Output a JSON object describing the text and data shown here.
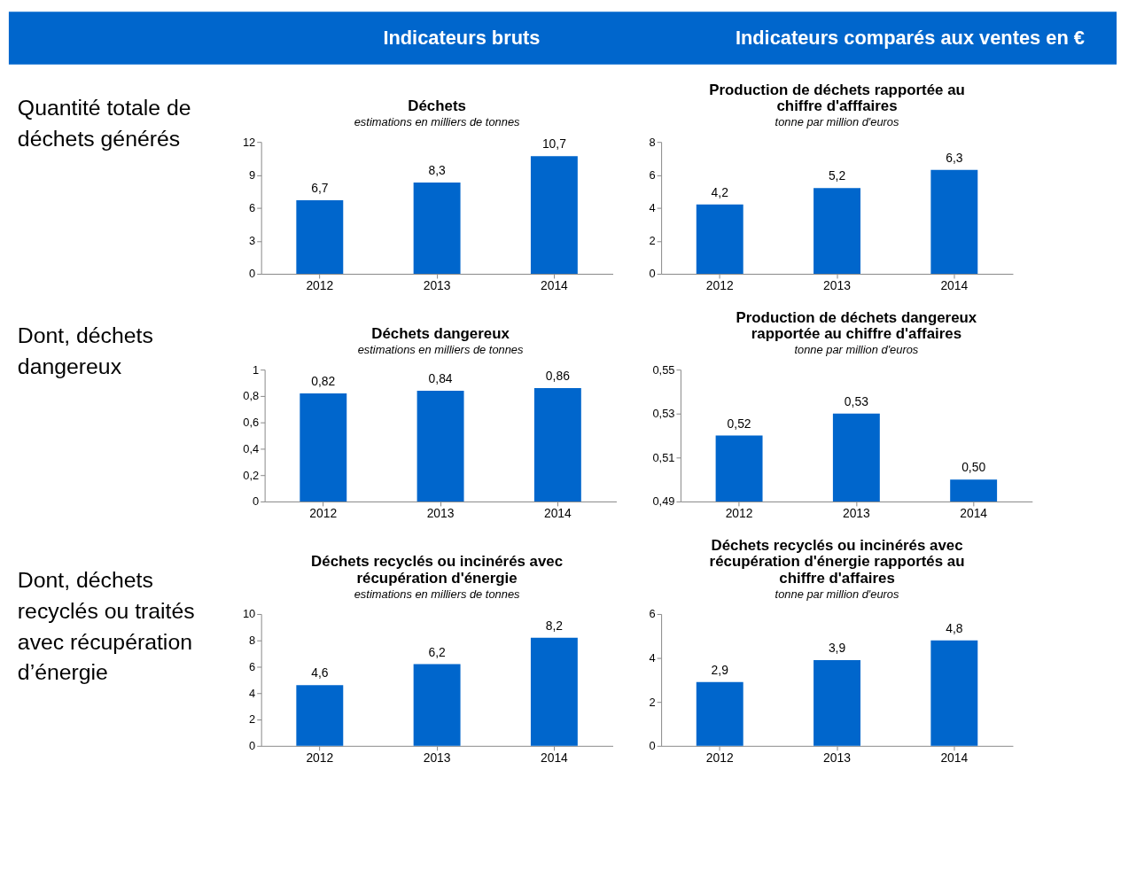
{
  "chart_data": [
    {
      "type": "bar",
      "title": "Déchets",
      "subtitle": "estimations en milliers de tonnes",
      "categories": [
        "2012",
        "2013",
        "2014"
      ],
      "values": [
        6.7,
        8.3,
        10.7
      ],
      "value_labels": [
        "6,7",
        "8,3",
        "10,7"
      ],
      "color": "#0066cc",
      "ylim": [
        0,
        12
      ],
      "yticks": [
        0,
        3,
        6,
        9,
        12
      ],
      "grid": false,
      "annotations": [
        "Indicateurs bruts",
        "Quantité totale de déchets générés"
      ]
    },
    {
      "type": "bar",
      "title": "Production de déchets rapportée au chiffre d'afffaires",
      "subtitle": "tonne par million d'euros",
      "categories": [
        "2012",
        "2013",
        "2014"
      ],
      "values": [
        4.2,
        5.2,
        6.3
      ],
      "value_labels": [
        "4,2",
        "5,2",
        "6,3"
      ],
      "color": "#0066cc",
      "ylim": [
        0,
        8
      ],
      "yticks": [
        0,
        2,
        4,
        6,
        8
      ],
      "grid": false,
      "annotations": [
        "Indicateurs comparés aux ventes en €"
      ]
    },
    {
      "type": "bar",
      "title": "Déchets dangereux",
      "subtitle": "estimations en milliers de tonnes",
      "categories": [
        "2012",
        "2013",
        "2014"
      ],
      "values": [
        0.82,
        0.84,
        0.86
      ],
      "value_labels": [
        "0,82",
        "0,84",
        "0,86"
      ],
      "color": "#0066cc",
      "ylim": [
        0,
        1
      ],
      "yticks": [
        0,
        {
          "value": 0.2,
          "label": "0,2"
        },
        {
          "value": 0.4,
          "label": "0,4"
        },
        {
          "value": 0.6,
          "label": "0,6"
        },
        {
          "value": 0.8,
          "label": "0,8"
        },
        1
      ],
      "grid": false,
      "annotations": [
        "Dont, déchets dangereux"
      ]
    },
    {
      "type": "bar",
      "title": "Production de déchets dangereux rapportée au chiffre d'affaires",
      "subtitle": "tonne par million d'euros",
      "categories": [
        "2012",
        "2013",
        "2014"
      ],
      "values": [
        0.52,
        0.53,
        0.5
      ],
      "value_labels": [
        "0,52",
        "0,53",
        "0,50"
      ],
      "color": "#0066cc",
      "ylim": [
        0.49,
        0.55
      ],
      "yticks": [
        {
          "value": 0.49,
          "label": "0,49"
        },
        {
          "value": 0.51,
          "label": "0,51"
        },
        {
          "value": 0.53,
          "label": "0,53"
        },
        {
          "value": 0.55,
          "label": "0,55"
        }
      ],
      "grid": false
    },
    {
      "type": "bar",
      "title": "Déchets recyclés ou incinérés avec récupération d'énergie",
      "subtitle": "estimations en milliers de tonnes",
      "categories": [
        "2012",
        "2013",
        "2014"
      ],
      "values": [
        4.6,
        6.2,
        8.2
      ],
      "value_labels": [
        "4,6",
        "6,2",
        "8,2"
      ],
      "color": "#0066cc",
      "ylim": [
        0,
        10
      ],
      "yticks": [
        0,
        2,
        4,
        6,
        8,
        10
      ],
      "grid": false,
      "annotations": [
        "Dont, déchets recyclés ou traités avec récupération d’énergie"
      ]
    },
    {
      "type": "bar",
      "title": "Déchets recyclés ou incinérés avec récupération d'énergie rapportés au chiffre d'affaires",
      "subtitle": "tonne par million d'euros",
      "categories": [
        "2012",
        "2013",
        "2014"
      ],
      "values": [
        2.9,
        3.9,
        4.8
      ],
      "value_labels": [
        "2,9",
        "3,9",
        "4,8"
      ],
      "color": "#0066cc",
      "ylim": [
        0,
        6
      ],
      "yticks": [
        0,
        2,
        4,
        6
      ],
      "grid": false
    }
  ]
}
